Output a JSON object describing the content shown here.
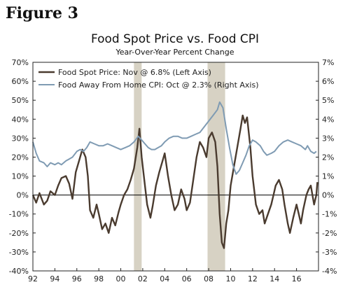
{
  "figure_label": "Figure 3",
  "chart_data": {
    "type": "line",
    "title": "Food Spot Price vs. Food CPI",
    "subtitle": "Year-Over-Year Percent Change",
    "x_tick_labels": [
      "92",
      "94",
      "96",
      "98",
      "00",
      "02",
      "04",
      "06",
      "08",
      "10",
      "12",
      "14",
      "16"
    ],
    "x_tick_years": [
      1992,
      1994,
      1996,
      1998,
      2000,
      2002,
      2004,
      2006,
      2008,
      2010,
      2012,
      2014,
      2016
    ],
    "xlim": [
      1992,
      2018
    ],
    "left_axis": {
      "ylim": [
        -40,
        70
      ],
      "ticks": [
        -40,
        -30,
        -20,
        -10,
        0,
        10,
        20,
        30,
        40,
        50,
        60,
        70
      ],
      "tick_labels": [
        "-40%",
        "-30%",
        "-20%",
        "-10%",
        "0%",
        "10%",
        "20%",
        "30%",
        "40%",
        "50%",
        "60%",
        "70%"
      ]
    },
    "right_axis": {
      "ylim": [
        -4,
        7
      ],
      "ticks": [
        -4,
        -3,
        -2,
        -1,
        0,
        1,
        2,
        3,
        4,
        5,
        6,
        7
      ],
      "tick_labels": [
        "-4%",
        "-3%",
        "-2%",
        "-1%",
        "0%",
        "1%",
        "2%",
        "3%",
        "4%",
        "5%",
        "6%",
        "7%"
      ]
    },
    "recession_shading": [
      [
        2001.2,
        2001.9
      ],
      [
        2007.9,
        2009.5
      ]
    ],
    "grid": false,
    "legend_position": "top-left",
    "colors": {
      "spot": "#4a3b2f",
      "cpi": "#7f9bb3",
      "recession": "#d7d2c4",
      "zero_line": "#000000"
    },
    "series": [
      {
        "name": "Food Spot Price: Nov @ 6.8% (Left Axis)",
        "axis": "left",
        "points": [
          [
            1992.0,
            0
          ],
          [
            1992.3,
            -4
          ],
          [
            1992.6,
            1
          ],
          [
            1993.0,
            -5
          ],
          [
            1993.3,
            -3
          ],
          [
            1993.6,
            2
          ],
          [
            1994.0,
            0
          ],
          [
            1994.3,
            5
          ],
          [
            1994.6,
            9
          ],
          [
            1995.0,
            10
          ],
          [
            1995.3,
            6
          ],
          [
            1995.6,
            -2
          ],
          [
            1995.9,
            12
          ],
          [
            1996.2,
            18
          ],
          [
            1996.5,
            24
          ],
          [
            1996.8,
            20
          ],
          [
            1997.0,
            10
          ],
          [
            1997.2,
            -8
          ],
          [
            1997.5,
            -12
          ],
          [
            1997.8,
            -5
          ],
          [
            1998.0,
            -10
          ],
          [
            1998.3,
            -18
          ],
          [
            1998.6,
            -15
          ],
          [
            1998.9,
            -20
          ],
          [
            1999.2,
            -12
          ],
          [
            1999.5,
            -16
          ],
          [
            1999.8,
            -9
          ],
          [
            2000.0,
            -5
          ],
          [
            2000.3,
            0
          ],
          [
            2000.6,
            3
          ],
          [
            2000.9,
            8
          ],
          [
            2001.2,
            14
          ],
          [
            2001.5,
            25
          ],
          [
            2001.7,
            35
          ],
          [
            2001.9,
            20
          ],
          [
            2002.1,
            10
          ],
          [
            2002.4,
            -5
          ],
          [
            2002.7,
            -12
          ],
          [
            2002.9,
            -6
          ],
          [
            2003.2,
            5
          ],
          [
            2003.5,
            12
          ],
          [
            2003.8,
            18
          ],
          [
            2004.0,
            22
          ],
          [
            2004.3,
            10
          ],
          [
            2004.6,
            0
          ],
          [
            2004.9,
            -8
          ],
          [
            2005.2,
            -5
          ],
          [
            2005.5,
            3
          ],
          [
            2005.8,
            -2
          ],
          [
            2006.0,
            -8
          ],
          [
            2006.3,
            -4
          ],
          [
            2006.6,
            8
          ],
          [
            2006.9,
            20
          ],
          [
            2007.2,
            28
          ],
          [
            2007.5,
            25
          ],
          [
            2007.8,
            20
          ],
          [
            2008.0,
            30
          ],
          [
            2008.3,
            33
          ],
          [
            2008.6,
            28
          ],
          [
            2008.8,
            15
          ],
          [
            2009.0,
            -10
          ],
          [
            2009.2,
            -25
          ],
          [
            2009.4,
            -28
          ],
          [
            2009.6,
            -15
          ],
          [
            2009.8,
            -8
          ],
          [
            2010.0,
            5
          ],
          [
            2010.3,
            15
          ],
          [
            2010.6,
            25
          ],
          [
            2010.9,
            35
          ],
          [
            2011.1,
            42
          ],
          [
            2011.3,
            38
          ],
          [
            2011.5,
            41
          ],
          [
            2011.8,
            25
          ],
          [
            2012.0,
            10
          ],
          [
            2012.3,
            -5
          ],
          [
            2012.6,
            -10
          ],
          [
            2012.9,
            -8
          ],
          [
            2013.1,
            -15
          ],
          [
            2013.4,
            -10
          ],
          [
            2013.7,
            -5
          ],
          [
            2013.9,
            0
          ],
          [
            2014.1,
            5
          ],
          [
            2014.4,
            8
          ],
          [
            2014.7,
            3
          ],
          [
            2014.9,
            -5
          ],
          [
            2015.2,
            -15
          ],
          [
            2015.4,
            -20
          ],
          [
            2015.7,
            -12
          ],
          [
            2016.0,
            -5
          ],
          [
            2016.2,
            -10
          ],
          [
            2016.4,
            -15
          ],
          [
            2016.6,
            -8
          ],
          [
            2016.9,
            0
          ],
          [
            2017.1,
            3
          ],
          [
            2017.3,
            5
          ],
          [
            2017.6,
            -5
          ],
          [
            2017.8,
            0
          ],
          [
            2017.9,
            6.8
          ]
        ]
      },
      {
        "name": "Food Away From Home CPI: Oct @ 2.3% (Right Axis)",
        "axis": "right",
        "points": [
          [
            1992.0,
            2.8
          ],
          [
            1992.3,
            2.2
          ],
          [
            1992.6,
            1.8
          ],
          [
            1993.0,
            1.7
          ],
          [
            1993.3,
            1.5
          ],
          [
            1993.6,
            1.7
          ],
          [
            1994.0,
            1.6
          ],
          [
            1994.3,
            1.7
          ],
          [
            1994.6,
            1.6
          ],
          [
            1995.0,
            1.8
          ],
          [
            1995.3,
            1.9
          ],
          [
            1995.6,
            2.0
          ],
          [
            1996.0,
            2.3
          ],
          [
            1996.3,
            2.4
          ],
          [
            1996.6,
            2.3
          ],
          [
            1996.9,
            2.5
          ],
          [
            1997.2,
            2.8
          ],
          [
            1997.6,
            2.7
          ],
          [
            1998.0,
            2.6
          ],
          [
            1998.4,
            2.6
          ],
          [
            1998.8,
            2.7
          ],
          [
            1999.2,
            2.6
          ],
          [
            1999.6,
            2.5
          ],
          [
            2000.0,
            2.4
          ],
          [
            2000.4,
            2.5
          ],
          [
            2000.8,
            2.6
          ],
          [
            2001.2,
            2.8
          ],
          [
            2001.6,
            3.1
          ],
          [
            2001.9,
            2.9
          ],
          [
            2002.2,
            2.7
          ],
          [
            2002.5,
            2.5
          ],
          [
            2002.8,
            2.4
          ],
          [
            2003.1,
            2.4
          ],
          [
            2003.4,
            2.5
          ],
          [
            2003.7,
            2.6
          ],
          [
            2004.0,
            2.8
          ],
          [
            2004.4,
            3.0
          ],
          [
            2004.8,
            3.1
          ],
          [
            2005.2,
            3.1
          ],
          [
            2005.6,
            3.0
          ],
          [
            2006.0,
            3.0
          ],
          [
            2006.4,
            3.1
          ],
          [
            2006.8,
            3.2
          ],
          [
            2007.2,
            3.3
          ],
          [
            2007.6,
            3.6
          ],
          [
            2008.0,
            3.9
          ],
          [
            2008.4,
            4.2
          ],
          [
            2008.8,
            4.5
          ],
          [
            2009.0,
            4.9
          ],
          [
            2009.3,
            4.6
          ],
          [
            2009.6,
            3.5
          ],
          [
            2009.9,
            2.5
          ],
          [
            2010.2,
            1.6
          ],
          [
            2010.5,
            1.1
          ],
          [
            2010.8,
            1.3
          ],
          [
            2011.1,
            1.7
          ],
          [
            2011.4,
            2.1
          ],
          [
            2011.7,
            2.6
          ],
          [
            2012.0,
            2.9
          ],
          [
            2012.3,
            2.8
          ],
          [
            2012.7,
            2.6
          ],
          [
            2013.0,
            2.3
          ],
          [
            2013.3,
            2.1
          ],
          [
            2013.7,
            2.2
          ],
          [
            2014.0,
            2.3
          ],
          [
            2014.4,
            2.6
          ],
          [
            2014.8,
            2.8
          ],
          [
            2015.2,
            2.9
          ],
          [
            2015.6,
            2.8
          ],
          [
            2016.0,
            2.7
          ],
          [
            2016.4,
            2.6
          ],
          [
            2016.8,
            2.4
          ],
          [
            2017.0,
            2.6
          ],
          [
            2017.3,
            2.3
          ],
          [
            2017.6,
            2.2
          ],
          [
            2017.8,
            2.3
          ]
        ]
      }
    ]
  }
}
